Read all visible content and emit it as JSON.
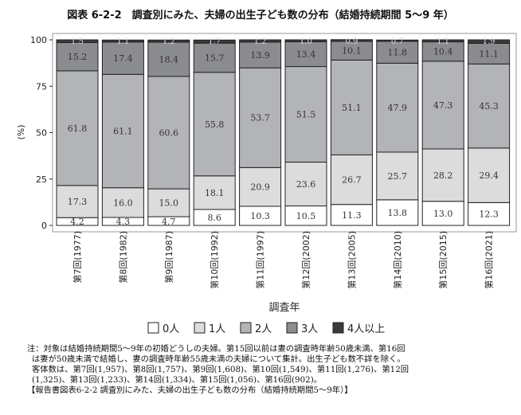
{
  "chart_data": {
    "type": "bar",
    "stacked": true,
    "title": "図表 6-2-2　調査別にみた、夫婦の出生子ども数の分布（結婚持続期間 5～9 年）",
    "xlabel": "調査年",
    "ylabel": "(%)",
    "ylim": [
      0,
      100
    ],
    "yticks": [
      0,
      25,
      50,
      75,
      100
    ],
    "categories": [
      "第7回(1977)",
      "第8回(1982)",
      "第9回(1987)",
      "第10回(1992)",
      "第11回(1997)",
      "第12回(2002)",
      "第13回(2005)",
      "第14回(2010)",
      "第15回(2015)",
      "第16回(2021)"
    ],
    "series": [
      {
        "name": "0人",
        "color": "#ffffff",
        "values": [
          4.2,
          4.3,
          4.7,
          8.6,
          10.3,
          10.5,
          11.3,
          13.8,
          13.0,
          12.3
        ]
      },
      {
        "name": "1人",
        "color": "#dcdcdc",
        "values": [
          17.3,
          16.0,
          15.0,
          18.1,
          20.9,
          23.6,
          26.7,
          25.7,
          28.2,
          29.4
        ]
      },
      {
        "name": "2人",
        "color": "#b3b4b8",
        "values": [
          61.8,
          61.1,
          60.6,
          55.8,
          53.7,
          51.5,
          51.1,
          47.9,
          47.3,
          45.3
        ]
      },
      {
        "name": "3人",
        "color": "#8b8c90",
        "values": [
          15.2,
          17.4,
          18.4,
          15.7,
          13.9,
          13.4,
          10.1,
          11.8,
          10.4,
          11.1
        ]
      },
      {
        "name": "4人以上",
        "color": "#3a3a3a",
        "values": [
          1.5,
          1.1,
          1.2,
          1.7,
          1.2,
          1.0,
          0.9,
          0.7,
          1.1,
          1.9
        ]
      }
    ],
    "legend": "bottom"
  },
  "notes": [
    "注：対象は結婚持続期間5～9年の初婚どうしの夫婦。第15回以前は妻の調査時年齢50歳未満、第16回",
    "は妻が50歳未満で結婚し、妻の調査時年齢55歳未満の夫婦について集計。出生子ども数不詳を除く。",
    "客体数は、第7回(1,957)、第8回(1,757)、第9回(1,608)、第10回(1,549)、第11回(1,276)、第12回",
    "(1,325)、第13回(1,233)、第14回(1,334)、第15回(1,056)、第16回(902)。",
    "【報告書図表6-2-2 調査別にみた、夫婦の出生子ども数の分布（結婚持続期間5～9年）】"
  ]
}
